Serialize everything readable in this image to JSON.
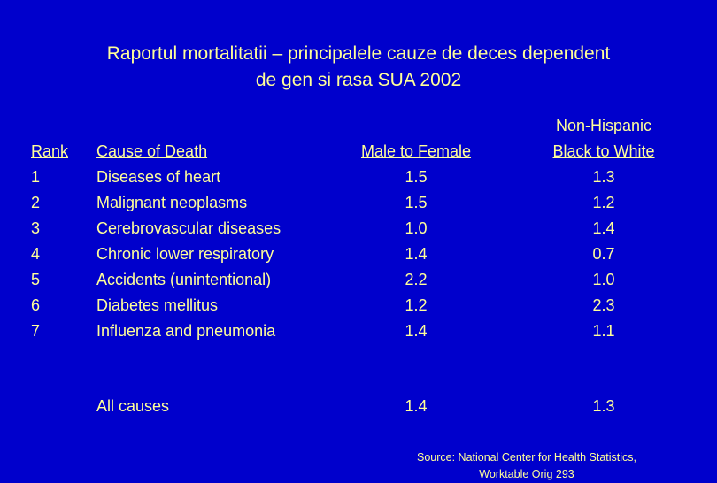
{
  "title": {
    "line1": "Raportul mortalitatii – principalele cauze de deces dependent",
    "line2": "de gen si rasa  SUA 2002"
  },
  "table": {
    "headers": {
      "rank": "Rank",
      "cause": "Cause of Death",
      "male_to_female": "Male to Female",
      "black_to_white_line1": "Non-Hispanic",
      "black_to_white_line2": "Black to White"
    },
    "rows": [
      {
        "rank": "1",
        "cause": "Diseases of heart",
        "male_to_female": "1.5",
        "black_to_white": "1.3"
      },
      {
        "rank": "2",
        "cause": "Malignant neoplasms",
        "male_to_female": "1.5",
        "black_to_white": "1.2"
      },
      {
        "rank": "3",
        "cause": "Cerebrovascular diseases",
        "male_to_female": "1.0",
        "black_to_white": "1.4"
      },
      {
        "rank": "4",
        "cause": "Chronic lower respiratory",
        "male_to_female": "1.4",
        "black_to_white": "0.7"
      },
      {
        "rank": "5",
        "cause": "Accidents (unintentional)",
        "male_to_female": "2.2",
        "black_to_white": "1.0"
      },
      {
        "rank": "6",
        "cause": "Diabetes mellitus",
        "male_to_female": "1.2",
        "black_to_white": "2.3"
      },
      {
        "rank": "7",
        "cause": "Influenza and pneumonia",
        "male_to_female": "1.4",
        "black_to_white": "1.1"
      }
    ],
    "total": {
      "cause": "All causes",
      "male_to_female": "1.4",
      "black_to_white": "1.3"
    }
  },
  "source": {
    "line1": "Source:  National Center for Health Statistics,",
    "line2": "Worktable Orig 293"
  },
  "colors": {
    "background": "#0000cc",
    "text": "#ffff99"
  }
}
